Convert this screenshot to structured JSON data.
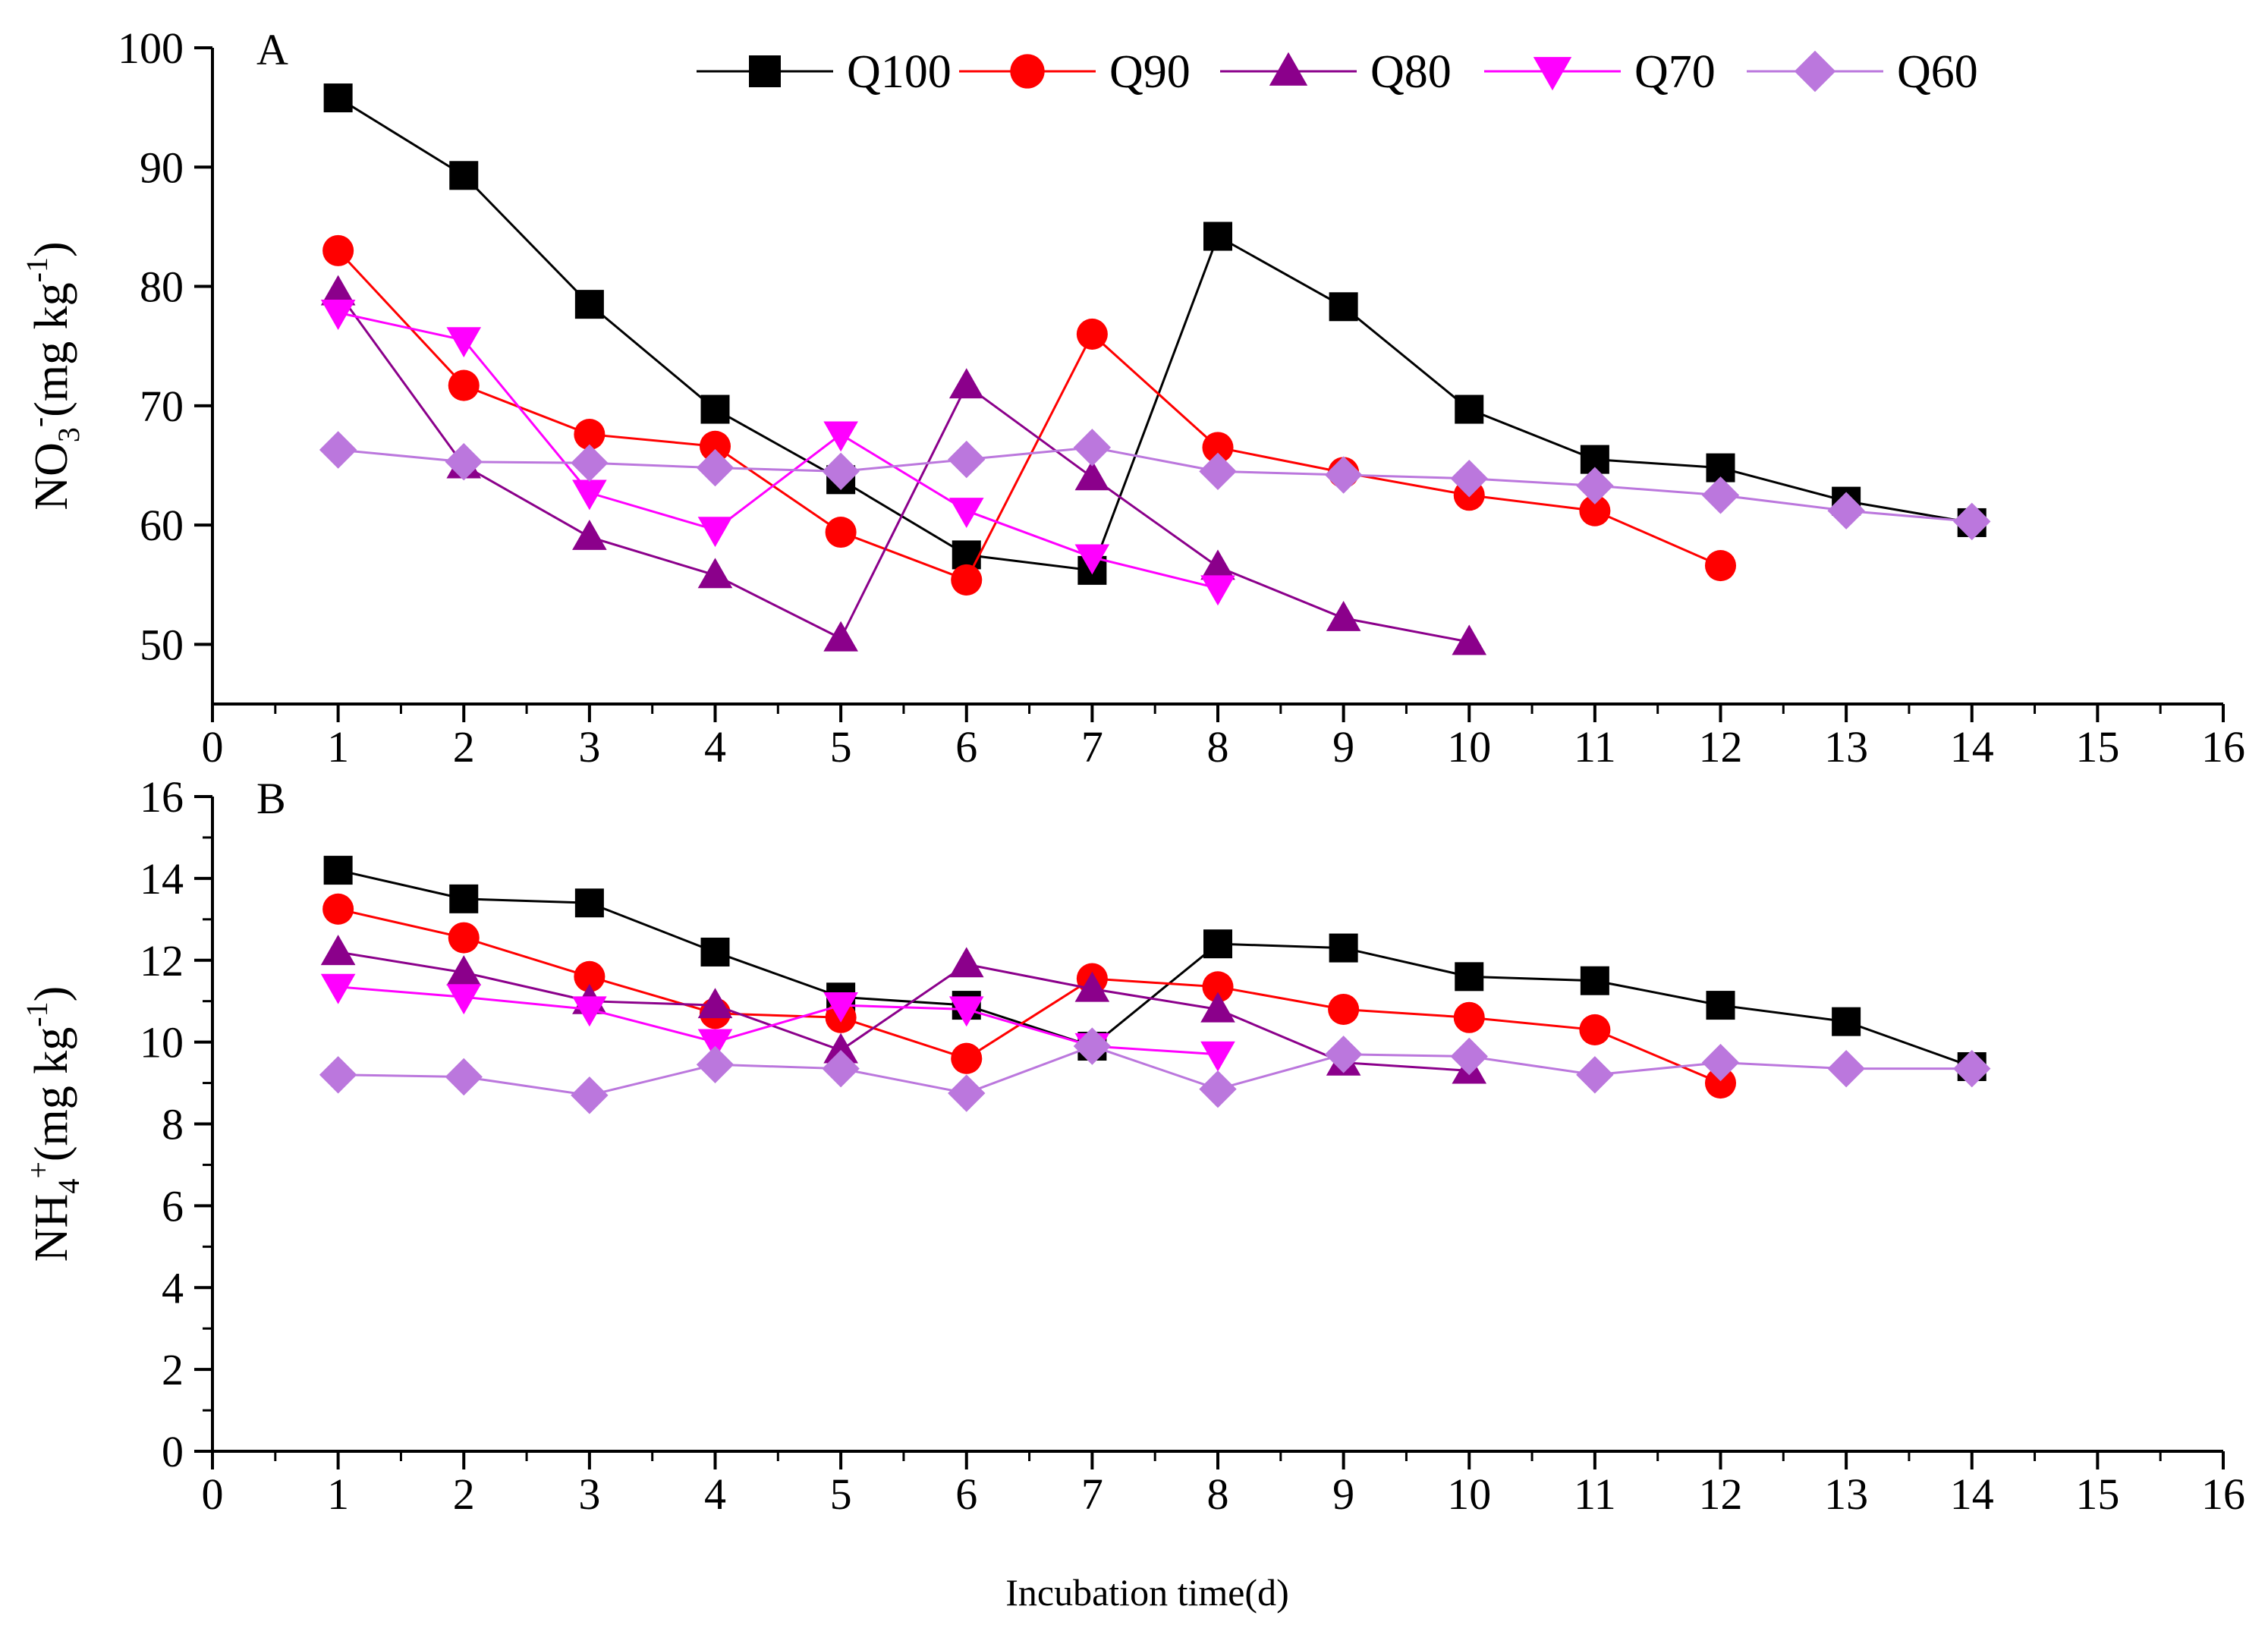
{
  "chart_data": [
    {
      "panel_label": "A",
      "type": "line",
      "ylabel_main": "NO",
      "ylabel_sub": "3",
      "ylabel_sup": "-",
      "ylabel_tail": "(mg kg",
      "ylabel_tail_sup": "-1",
      "ylabel_end": ")",
      "xlim": [
        0,
        16
      ],
      "ylim": [
        45,
        100
      ],
      "x_ticks": [
        0,
        1,
        2,
        3,
        4,
        5,
        6,
        7,
        8,
        9,
        10,
        11,
        12,
        13,
        14,
        15,
        16
      ],
      "y_ticks": [
        50,
        60,
        70,
        80,
        90,
        100
      ],
      "series": [
        {
          "name": "Q100",
          "marker": "square",
          "color": "#000000",
          "x": [
            1,
            2,
            3,
            4,
            5,
            6,
            7,
            8,
            9,
            10,
            11,
            12,
            13,
            14
          ],
          "y": [
            95.8,
            89.3,
            78.5,
            69.7,
            63.8,
            57.5,
            56.2,
            84.2,
            78.3,
            69.7,
            65.5,
            64.8,
            62.0,
            60.2
          ]
        },
        {
          "name": "Q90",
          "marker": "circle",
          "color": "#ff0000",
          "x": [
            1,
            2,
            3,
            4,
            5,
            6,
            7,
            8,
            9,
            10,
            11,
            12
          ],
          "y": [
            83.0,
            71.7,
            67.6,
            66.6,
            59.4,
            55.4,
            76.0,
            66.5,
            64.4,
            62.5,
            61.2,
            56.6
          ]
        },
        {
          "name": "Q80",
          "marker": "triangle-up",
          "color": "#8b008b",
          "x": [
            1,
            2,
            3,
            4,
            5,
            6,
            7,
            8,
            9,
            10
          ],
          "y": [
            79.5,
            65.0,
            59.0,
            55.8,
            50.5,
            71.7,
            64.0,
            56.5,
            52.2,
            50.2
          ]
        },
        {
          "name": "Q70",
          "marker": "triangle-down",
          "color": "#ff00ff",
          "x": [
            1,
            2,
            3,
            4,
            5,
            6,
            7,
            8
          ],
          "y": [
            77.8,
            75.5,
            62.7,
            59.6,
            67.6,
            61.2,
            57.3,
            54.7
          ]
        },
        {
          "name": "Q60",
          "marker": "diamond",
          "color": "#bb77dd",
          "x": [
            1,
            2,
            3,
            4,
            5,
            6,
            7,
            8,
            9,
            10,
            11,
            12,
            13,
            14
          ],
          "y": [
            66.3,
            65.3,
            65.2,
            64.8,
            64.5,
            65.5,
            66.5,
            64.5,
            64.2,
            63.9,
            63.3,
            62.5,
            61.2,
            60.3
          ]
        }
      ]
    },
    {
      "panel_label": "B",
      "type": "line",
      "ylabel_main": "NH",
      "ylabel_sub": "4",
      "ylabel_sup": "+",
      "ylabel_tail": "(mg kg",
      "ylabel_tail_sup": "-1",
      "ylabel_end": ")",
      "xlim": [
        0,
        16
      ],
      "ylim": [
        0,
        16
      ],
      "x_ticks": [
        0,
        1,
        2,
        3,
        4,
        5,
        6,
        7,
        8,
        9,
        10,
        11,
        12,
        13,
        14,
        15,
        16
      ],
      "y_ticks": [
        0,
        2,
        4,
        6,
        8,
        10,
        12,
        14,
        16
      ],
      "series": [
        {
          "name": "Q100",
          "marker": "square",
          "color": "#000000",
          "x": [
            1,
            2,
            3,
            4,
            5,
            6,
            7,
            8,
            9,
            10,
            11,
            12,
            13,
            14
          ],
          "y": [
            14.2,
            13.5,
            13.4,
            12.2,
            11.1,
            10.9,
            9.9,
            12.4,
            12.3,
            11.6,
            11.5,
            10.9,
            10.5,
            9.4
          ]
        },
        {
          "name": "Q90",
          "marker": "circle",
          "color": "#ff0000",
          "x": [
            1,
            2,
            3,
            4,
            5,
            6,
            7,
            8,
            9,
            10,
            11,
            12
          ],
          "y": [
            13.25,
            12.55,
            11.6,
            10.7,
            10.6,
            9.6,
            11.55,
            11.35,
            10.8,
            10.6,
            10.3,
            9.0
          ]
        },
        {
          "name": "Q80",
          "marker": "triangle-up",
          "color": "#8b008b",
          "x": [
            1,
            2,
            3,
            4,
            5,
            6,
            7,
            8,
            9,
            10
          ],
          "y": [
            12.2,
            11.7,
            11.0,
            10.9,
            9.8,
            11.9,
            11.3,
            10.8,
            9.5,
            9.3
          ]
        },
        {
          "name": "Q70",
          "marker": "triangle-down",
          "color": "#ff00ff",
          "x": [
            1,
            2,
            3,
            4,
            5,
            6,
            7,
            8
          ],
          "y": [
            11.35,
            11.1,
            10.8,
            10.0,
            10.9,
            10.8,
            9.9,
            9.7
          ]
        },
        {
          "name": "Q60",
          "marker": "diamond",
          "color": "#bb77dd",
          "x": [
            1,
            2,
            3,
            4,
            5,
            6,
            7,
            8,
            9,
            10,
            11,
            12,
            13,
            14
          ],
          "y": [
            9.2,
            9.15,
            8.7,
            9.45,
            9.35,
            8.75,
            9.9,
            8.85,
            9.7,
            9.65,
            9.2,
            9.5,
            9.35,
            9.35
          ]
        }
      ]
    }
  ],
  "legend": {
    "placement": "top",
    "entries": [
      "Q100",
      "Q90",
      "Q80",
      "Q70",
      "Q60"
    ]
  },
  "xlabel": "Incubation time(d)"
}
